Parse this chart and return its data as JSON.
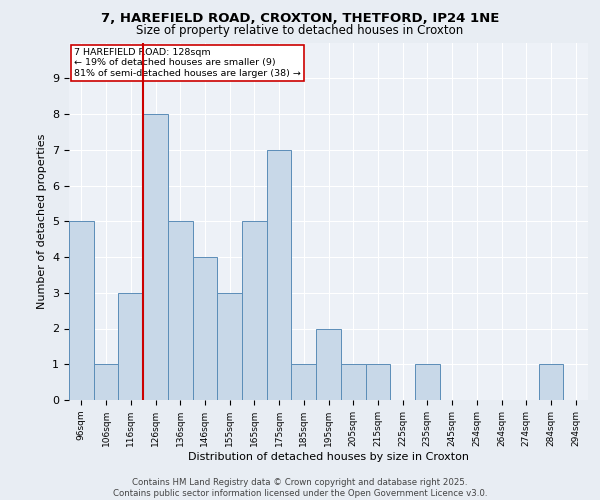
{
  "title_line1": "7, HAREFIELD ROAD, CROXTON, THETFORD, IP24 1NE",
  "title_line2": "Size of property relative to detached houses in Croxton",
  "xlabel": "Distribution of detached houses by size in Croxton",
  "ylabel": "Number of detached properties",
  "categories": [
    "96sqm",
    "106sqm",
    "116sqm",
    "126sqm",
    "136sqm",
    "146sqm",
    "155sqm",
    "165sqm",
    "175sqm",
    "185sqm",
    "195sqm",
    "205sqm",
    "215sqm",
    "225sqm",
    "235sqm",
    "245sqm",
    "254sqm",
    "264sqm",
    "274sqm",
    "284sqm",
    "294sqm"
  ],
  "values": [
    5,
    1,
    3,
    8,
    5,
    4,
    3,
    5,
    7,
    1,
    2,
    1,
    1,
    0,
    1,
    0,
    0,
    0,
    0,
    1,
    0
  ],
  "bar_color": "#c8d8e8",
  "bar_edge_color": "#5b8db8",
  "vline_color": "#cc0000",
  "vline_index": 2.5,
  "annotation_text": "7 HAREFIELD ROAD: 128sqm\n← 19% of detached houses are smaller (9)\n81% of semi-detached houses are larger (38) →",
  "annotation_box_color": "#ffffff",
  "annotation_box_edge": "#cc0000",
  "ylim": [
    0,
    10
  ],
  "yticks": [
    0,
    1,
    2,
    3,
    4,
    5,
    6,
    7,
    8,
    9,
    10
  ],
  "footer_line1": "Contains HM Land Registry data © Crown copyright and database right 2025.",
  "footer_line2": "Contains public sector information licensed under the Open Government Licence v3.0.",
  "background_color": "#e8edf3",
  "plot_background": "#edf1f7"
}
